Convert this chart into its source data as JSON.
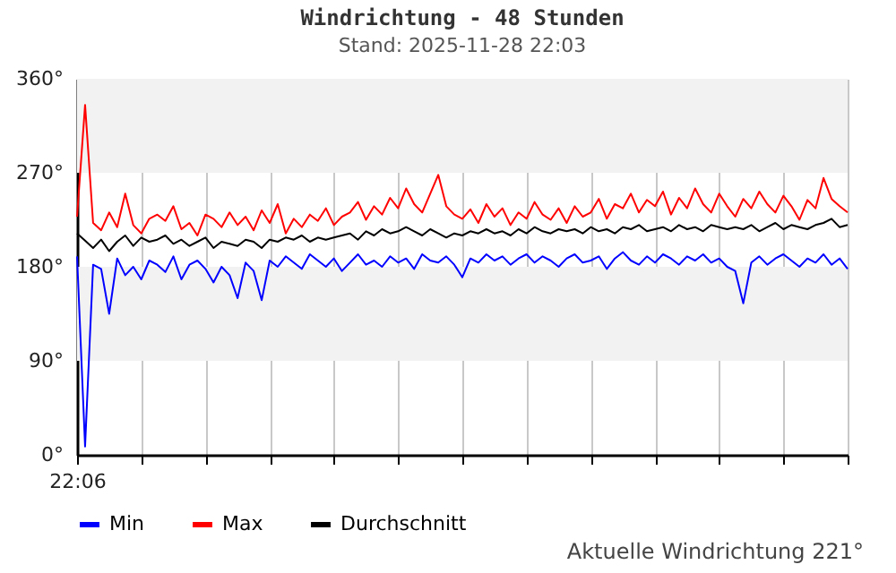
{
  "chart_data": {
    "type": "line",
    "title": "Windrichtung - 48 Stunden",
    "subtitle": "Stand: 2025-11-28 22:03",
    "annotations": [
      "Aktuelle Windrichtung 221°"
    ],
    "categories": [
      "22:06",
      null,
      null,
      null,
      null,
      null,
      null,
      null,
      null,
      null,
      null,
      null,
      null,
      null,
      null,
      null,
      null,
      null,
      null,
      null,
      null,
      null,
      null,
      null,
      null,
      null,
      null,
      null,
      null,
      null,
      null,
      null,
      null,
      null,
      null,
      null,
      null,
      null,
      null,
      null,
      null,
      null,
      null,
      null,
      null,
      null,
      null,
      null,
      null,
      null,
      null,
      null,
      null,
      null,
      null,
      null,
      null,
      null,
      null,
      null,
      null,
      null,
      null,
      null,
      null,
      null,
      null,
      null,
      null,
      null,
      null,
      null,
      null,
      null,
      null,
      null,
      null,
      null,
      null,
      null,
      null,
      null,
      null,
      null,
      null,
      null,
      null,
      null,
      null,
      null,
      null,
      null,
      null,
      null,
      null,
      null,
      null
    ],
    "series": [
      {
        "name": "Min",
        "color": "#0000ff",
        "values": [
          190,
          8,
          182,
          178,
          135,
          188,
          172,
          180,
          168,
          186,
          182,
          175,
          190,
          168,
          182,
          186,
          178,
          165,
          180,
          172,
          150,
          184,
          176,
          148,
          186,
          180,
          190,
          184,
          178,
          192,
          186,
          180,
          188,
          176,
          184,
          192,
          182,
          186,
          180,
          190,
          184,
          188,
          178,
          192,
          186,
          184,
          190,
          182,
          170,
          188,
          184,
          192,
          186,
          190,
          182,
          188,
          192,
          184,
          190,
          186,
          180,
          188,
          192,
          184,
          186,
          190,
          178,
          188,
          194,
          186,
          182,
          190,
          184,
          192,
          188,
          182,
          190,
          186,
          192,
          184,
          188,
          180,
          176,
          145,
          184,
          190,
          182,
          188,
          192,
          186,
          180,
          188,
          184,
          192,
          182,
          188,
          178
        ]
      },
      {
        "name": "Max",
        "color": "#ff0000",
        "values": [
          228,
          335,
          222,
          215,
          232,
          218,
          250,
          220,
          212,
          226,
          230,
          224,
          238,
          216,
          222,
          210,
          230,
          226,
          218,
          232,
          220,
          228,
          215,
          234,
          222,
          240,
          212,
          226,
          218,
          230,
          224,
          236,
          220,
          228,
          232,
          242,
          225,
          238,
          230,
          246,
          236,
          255,
          240,
          232,
          250,
          268,
          238,
          230,
          226,
          235,
          222,
          240,
          228,
          236,
          220,
          232,
          226,
          242,
          230,
          225,
          236,
          222,
          238,
          228,
          232,
          245,
          226,
          240,
          236,
          250,
          232,
          244,
          238,
          252,
          230,
          246,
          236,
          255,
          240,
          232,
          250,
          238,
          228,
          245,
          236,
          252,
          240,
          232,
          248,
          238,
          225,
          244,
          236,
          265,
          245,
          238,
          232
        ]
      },
      {
        "name": "Durchschnitt",
        "color": "#000000",
        "values": [
          212,
          205,
          198,
          206,
          195,
          204,
          210,
          200,
          208,
          204,
          206,
          210,
          202,
          206,
          200,
          204,
          208,
          198,
          204,
          202,
          200,
          206,
          204,
          198,
          206,
          204,
          208,
          206,
          210,
          204,
          208,
          206,
          208,
          210,
          212,
          206,
          214,
          210,
          216,
          212,
          214,
          218,
          214,
          210,
          216,
          212,
          208,
          212,
          210,
          214,
          212,
          216,
          212,
          214,
          210,
          216,
          212,
          218,
          214,
          212,
          216,
          214,
          216,
          212,
          218,
          214,
          216,
          212,
          218,
          216,
          220,
          214,
          216,
          218,
          214,
          220,
          216,
          218,
          214,
          220,
          218,
          216,
          218,
          216,
          220,
          214,
          218,
          222,
          216,
          220,
          218,
          216,
          220,
          222,
          226,
          218,
          220
        ]
      }
    ],
    "ylim": [
      0,
      360
    ],
    "yticks": [
      {
        "value": 0,
        "label": "0°"
      },
      {
        "value": 90,
        "label": "90°"
      },
      {
        "value": 180,
        "label": "180°"
      },
      {
        "value": 270,
        "label": "270°"
      },
      {
        "value": 360,
        "label": "360°"
      }
    ],
    "bands": [
      {
        "axis": "y",
        "from": 90,
        "to": 180,
        "color": "#f2f2f2"
      },
      {
        "axis": "y",
        "from": 270,
        "to": 360,
        "color": "#f2f2f2"
      }
    ],
    "grid": "x",
    "legend": "bottom"
  }
}
